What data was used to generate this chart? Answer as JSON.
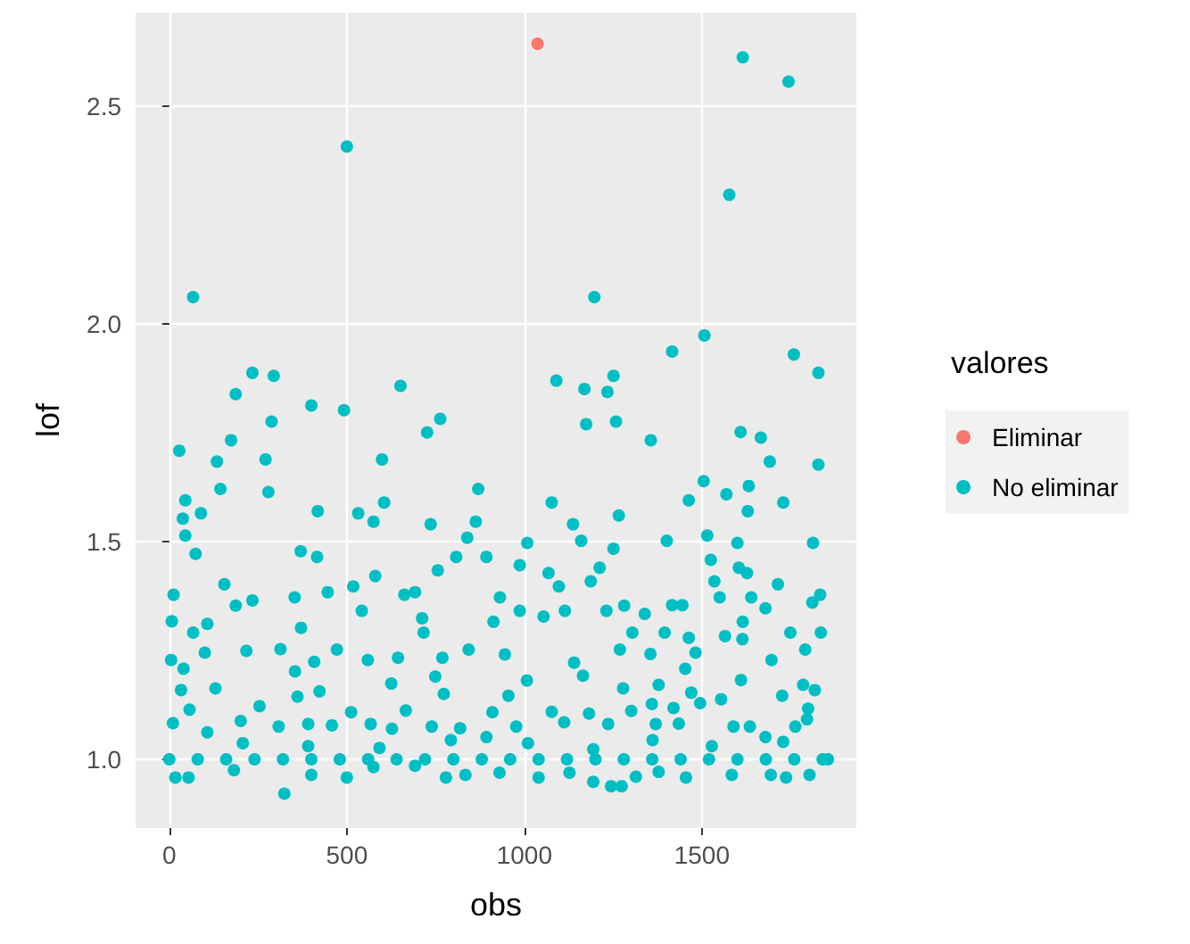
{
  "chart_data": {
    "type": "scatter",
    "xlabel": "obs",
    "ylabel": "lof",
    "legend_title": "valores",
    "legend": "right",
    "grid": true,
    "marker": "circle",
    "xlim": [
      -95,
      1935
    ],
    "ylim": [
      0.842,
      2.716
    ],
    "xticks": [
      0,
      500,
      1000,
      1500
    ],
    "yticks": [
      {
        "value": 1,
        "label": "1.0"
      },
      {
        "value": 1.5,
        "label": "1.5"
      },
      {
        "value": 2,
        "label": "2.0"
      },
      {
        "value": 2.5,
        "label": "2.5"
      }
    ],
    "series": [
      {
        "name": "Eliminar",
        "color": "#f8766d",
        "x": [
          1037
        ],
        "values": [
          2.644
        ]
      },
      {
        "name": "No eliminar",
        "color": "#00bfc4",
        "x": [
          1615,
          1744,
          500,
          1577,
          67,
          1197,
          1507,
          1416,
          1759,
          1828,
          234,
          294,
          1090,
          651,
          1251,
          1169,
          1234,
          187,
          400,
          492,
          763,
          1174,
          1258,
          288,
          726,
          174,
          1356,
          28,
          1609,
          1666,
          271,
          134,
          599,
          1691,
          1828,
          1505,
          1632,
          870,
          144,
          279,
          45,
          1077,
          605,
          1569,
          1729,
          1463,
          1629,
          89,
          418,
          532,
          1266,
          38,
          575,
          736,
          1137,
          863,
          45,
          1515,
          839,
          1160,
          1401,
          1813,
          1008,
          1600,
          74,
          370,
          416,
          1251,
          808,
          893,
          987,
          1525,
          1604,
          1212,
          756,
          1068,
          1627,
          580,
          155,
          1714,
          1535,
          1097,
          1187,
          12,
          692,
          518,
          446,
          931,
          1833,
          662,
          1550,
          353,
          1416,
          1445,
          1639,
          187,
          1811,
          234,
          542,
          1231,
          1339,
          1679,
          987,
          1054,
          7,
          1114,
          1281,
          712,
          913,
          1615,
          371,
          107,
          1565,
          67,
          1835,
          1749,
          1304,
          1395,
          1463,
          716,
          1269,
          1614,
          313,
          100,
          217,
          1482,
          1355,
          843,
          945,
          472,
          1791,
          1696,
          644,
          408,
          769,
          5,
          559,
          1140,
          1453,
          354,
          749,
          40,
          1007,
          1165,
          1610,
          1785,
          130,
          625,
          33,
          1378,
          1278,
          423,
          1818,
          773,
          955,
          1470,
          1726,
          1554,
          1359,
          361,
          1077,
          1799,
          57,
          254,
          512,
          1420,
          1495,
          1182,
          910,
          1301,
          666,
          201,
          391,
          1370,
          10,
          567,
          977,
          1589,
          1112,
          1763,
          1796,
          1236,
          819,
          627,
          1435,
          458,
          308,
          1635,
          107,
          739,
          1679,
          17,
          54,
          324,
          500,
          779,
          834,
          930,
          1040,
          1127,
          1194,
          1244,
          1274,
          1314,
          1455,
          1584,
          1694,
          1737,
          1803,
          182,
          400,
          575,
          692,
          1378,
          207,
          391,
          592,
          793,
          893,
          1010,
          1194,
          1361,
          1528,
          1729,
          1855,
          0,
          80,
          160,
          240,
          320,
          400,
          480,
          560,
          640,
          720,
          800,
          880,
          960,
          1040,
          1120,
          1200,
          1280,
          1360,
          1440,
          1520,
          1600,
          1680,
          1760,
          1840
        ],
        "values": [
          2.613,
          2.557,
          2.408,
          2.297,
          2.062,
          2.062,
          1.974,
          1.937,
          1.93,
          1.888,
          1.888,
          1.881,
          1.87,
          1.858,
          1.881,
          1.851,
          1.844,
          1.839,
          1.813,
          1.802,
          1.782,
          1.77,
          1.776,
          1.776,
          1.751,
          1.733,
          1.733,
          1.709,
          1.752,
          1.739,
          1.689,
          1.684,
          1.689,
          1.684,
          1.677,
          1.639,
          1.628,
          1.621,
          1.621,
          1.614,
          1.595,
          1.59,
          1.59,
          1.609,
          1.59,
          1.595,
          1.57,
          1.565,
          1.57,
          1.565,
          1.56,
          1.553,
          1.546,
          1.54,
          1.54,
          1.546,
          1.514,
          1.514,
          1.509,
          1.502,
          1.502,
          1.497,
          1.497,
          1.497,
          1.472,
          1.478,
          1.465,
          1.484,
          1.465,
          1.465,
          1.446,
          1.458,
          1.44,
          1.44,
          1.434,
          1.428,
          1.428,
          1.421,
          1.402,
          1.402,
          1.409,
          1.397,
          1.409,
          1.378,
          1.384,
          1.397,
          1.384,
          1.372,
          1.378,
          1.378,
          1.372,
          1.372,
          1.354,
          1.354,
          1.372,
          1.353,
          1.36,
          1.365,
          1.341,
          1.341,
          1.334,
          1.347,
          1.341,
          1.328,
          1.317,
          1.341,
          1.353,
          1.324,
          1.316,
          1.316,
          1.302,
          1.311,
          1.283,
          1.291,
          1.291,
          1.291,
          1.291,
          1.291,
          1.279,
          1.291,
          1.252,
          1.276,
          1.253,
          1.245,
          1.249,
          1.245,
          1.242,
          1.252,
          1.241,
          1.252,
          1.252,
          1.228,
          1.233,
          1.224,
          1.233,
          1.228,
          1.228,
          1.222,
          1.208,
          1.202,
          1.19,
          1.208,
          1.181,
          1.192,
          1.182,
          1.171,
          1.163,
          1.174,
          1.159,
          1.171,
          1.163,
          1.156,
          1.159,
          1.15,
          1.146,
          1.153,
          1.146,
          1.138,
          1.127,
          1.144,
          1.109,
          1.116,
          1.114,
          1.122,
          1.108,
          1.118,
          1.129,
          1.105,
          1.108,
          1.111,
          1.112,
          1.088,
          1.081,
          1.081,
          1.083,
          1.081,
          1.075,
          1.075,
          1.085,
          1.075,
          1.092,
          1.081,
          1.071,
          1.07,
          1.082,
          1.078,
          1.075,
          1.075,
          1.062,
          1.075,
          1.051,
          0.958,
          0.958,
          0.921,
          0.958,
          0.958,
          0.964,
          0.969,
          0.958,
          0.969,
          0.948,
          0.938,
          0.938,
          0.96,
          0.958,
          0.964,
          0.964,
          0.958,
          0.964,
          0.975,
          0.964,
          0.982,
          0.985,
          0.971,
          1.037,
          1.03,
          1.026,
          1.044,
          1.051,
          1.037,
          1.023,
          1.044,
          1.03,
          1.04,
          1.0,
          1.0,
          1.0,
          1.0,
          1.0,
          1.0,
          1.0,
          1.0,
          1.0,
          1.0,
          1.0,
          1.0,
          1.0,
          1.0,
          1.0,
          1.0,
          1.0,
          1.0,
          1.0,
          1.0,
          1.0,
          1.0,
          1.0,
          1.0,
          1.0
        ]
      }
    ]
  }
}
